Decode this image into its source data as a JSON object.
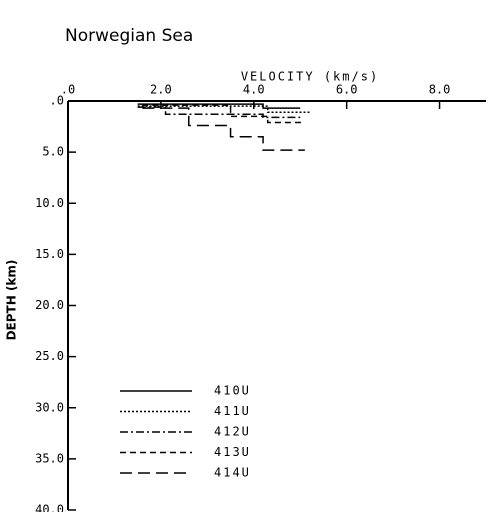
{
  "chart_data": {
    "type": "line",
    "title": "Norwegian Sea",
    "x_label": "VELOCITY (km/s)",
    "y_label": "DEPTH (km)",
    "xlim": [
      0,
      9
    ],
    "ylim": [
      0,
      40
    ],
    "y_inverted": true,
    "x_axis_position": "top",
    "xticks": [
      {
        "value": 0,
        "label": ".0"
      },
      {
        "value": 2,
        "label": "2.0"
      },
      {
        "value": 4,
        "label": "4.0"
      },
      {
        "value": 6,
        "label": "6.0"
      },
      {
        "value": 8,
        "label": "8.0"
      }
    ],
    "yticks": [
      {
        "value": 0,
        "label": ".0"
      },
      {
        "value": 5,
        "label": "5.0"
      },
      {
        "value": 10,
        "label": "10.0"
      },
      {
        "value": 15,
        "label": "15.0"
      },
      {
        "value": 20,
        "label": "20.0"
      },
      {
        "value": 25,
        "label": "25.0"
      },
      {
        "value": 30,
        "label": "30.0"
      },
      {
        "value": 35,
        "label": "35.0"
      },
      {
        "value": 40,
        "label": "40.0"
      }
    ],
    "grid": false,
    "legend": "lower left",
    "series": [
      {
        "name": "410U",
        "color": "#000000",
        "dash": "none",
        "x": [
          1.5,
          4.2,
          4.2,
          5.0
        ],
        "values": [
          0.3,
          0.3,
          0.7,
          0.7
        ]
      },
      {
        "name": "411U",
        "color": "#000000",
        "dash": "2,2",
        "x": [
          1.5,
          4.3,
          4.3,
          5.2
        ],
        "values": [
          0.5,
          0.5,
          1.1,
          1.1
        ]
      },
      {
        "name": "412U",
        "color": "#000000",
        "dash": "8,3,2,3",
        "x": [
          1.5,
          2.1,
          2.1,
          4.2,
          4.2,
          5.0
        ],
        "values": [
          0.6,
          0.6,
          1.3,
          1.3,
          1.6,
          1.6
        ]
      },
      {
        "name": "413U",
        "color": "#000000",
        "dash": "6,4",
        "x": [
          1.6,
          3.5,
          3.5,
          4.3,
          4.3,
          5.1
        ],
        "values": [
          0.4,
          0.4,
          1.5,
          1.5,
          2.1,
          2.1
        ]
      },
      {
        "name": "414U",
        "color": "#000000",
        "dash": "12,6",
        "x": [
          1.6,
          2.6,
          2.6,
          3.5,
          3.5,
          4.2,
          4.2,
          5.1
        ],
        "values": [
          0.7,
          0.7,
          2.4,
          2.4,
          3.5,
          3.5,
          4.8,
          4.8
        ]
      }
    ]
  }
}
